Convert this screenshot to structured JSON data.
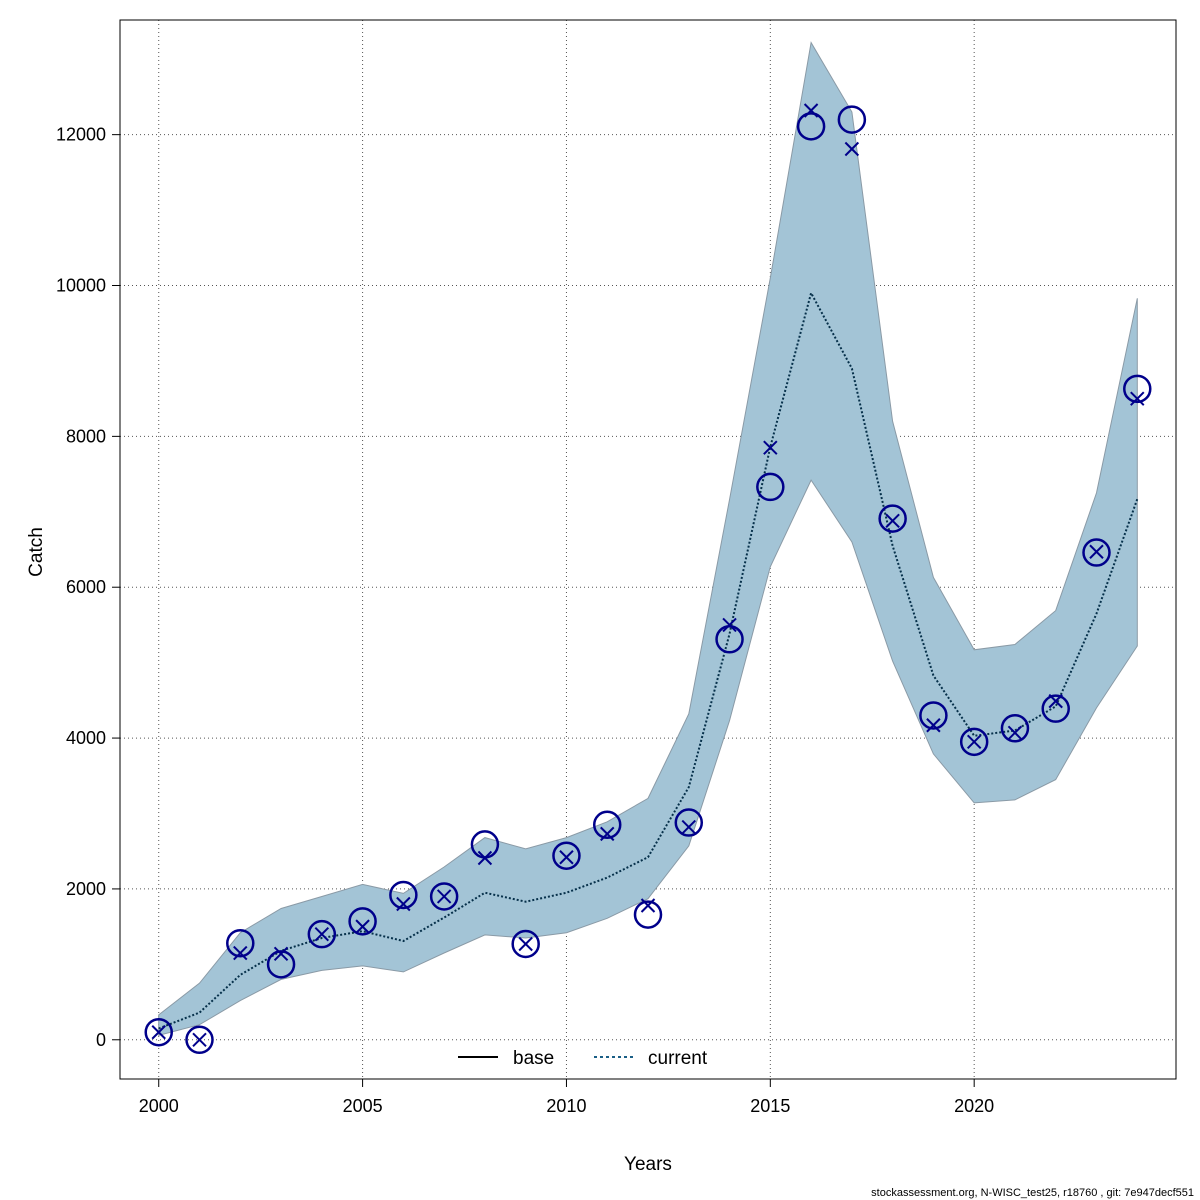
{
  "chart_data": {
    "type": "line",
    "xlabel": "Years",
    "ylabel": "Catch",
    "xlim": [
      1999.05,
      2024.95
    ],
    "ylim": [
      -520,
      13520
    ],
    "x_ticks": [
      2000,
      2005,
      2010,
      2015,
      2020
    ],
    "y_ticks": [
      0,
      2000,
      4000,
      6000,
      8000,
      10000,
      12000
    ],
    "grid": true,
    "legend_position": "bottom-center",
    "legend": [
      {
        "name": "base",
        "style": "solid",
        "color": "#000000"
      },
      {
        "name": "current",
        "style": "dotted",
        "color": "#1a5f86"
      }
    ],
    "colors": {
      "band": "#a3c4d6",
      "band_edge": "#8a9aa6",
      "points": "#00008b",
      "current_line": "#06304a"
    },
    "x": [
      2000,
      2001,
      2002,
      2003,
      2004,
      2005,
      2006,
      2007,
      2008,
      2009,
      2010,
      2011,
      2012,
      2013,
      2014,
      2015,
      2016,
      2017,
      2018,
      2019,
      2020,
      2021,
      2022,
      2023,
      2024
    ],
    "series": [
      {
        "name": "current",
        "kind": "line",
        "values": [
          150,
          360,
          860,
          1180,
          1350,
          1440,
          1310,
          1620,
          1950,
          1830,
          1950,
          2150,
          2420,
          3350,
          5380,
          7860,
          9900,
          8900,
          6550,
          4830,
          4030,
          4100,
          4420,
          5650,
          7170
        ]
      },
      {
        "kind": "band_lower",
        "values": [
          60,
          200,
          520,
          800,
          920,
          980,
          900,
          1150,
          1390,
          1350,
          1420,
          1610,
          1870,
          2570,
          4230,
          6270,
          7420,
          6600,
          5020,
          3790,
          3140,
          3180,
          3450,
          4400,
          5220
        ]
      },
      {
        "kind": "band_upper",
        "values": [
          330,
          750,
          1420,
          1740,
          1900,
          2060,
          1940,
          2290,
          2680,
          2530,
          2680,
          2890,
          3200,
          4320,
          7160,
          10100,
          13220,
          12300,
          8200,
          6130,
          5170,
          5240,
          5690,
          7250,
          9830
        ]
      },
      {
        "kind": "observed",
        "marker": "circle",
        "values": [
          100,
          0,
          1280,
          1000,
          1400,
          1570,
          1920,
          1900,
          2590,
          1270,
          2440,
          2850,
          1660,
          2880,
          5310,
          7330,
          12110,
          12200,
          6910,
          4300,
          3950,
          4130,
          4390,
          6460,
          8630
        ]
      },
      {
        "kind": "predicted",
        "marker": "x",
        "values": [
          100,
          0,
          1150,
          1140,
          1400,
          1500,
          1800,
          1900,
          2410,
          1270,
          2420,
          2730,
          1780,
          2820,
          5500,
          7850,
          12320,
          11810,
          6880,
          4170,
          3950,
          4070,
          4490,
          6470,
          8500
        ]
      }
    ]
  },
  "footer": "stockassessment.org, N-WISC_test25, r18760 , git: 7e947decf551"
}
